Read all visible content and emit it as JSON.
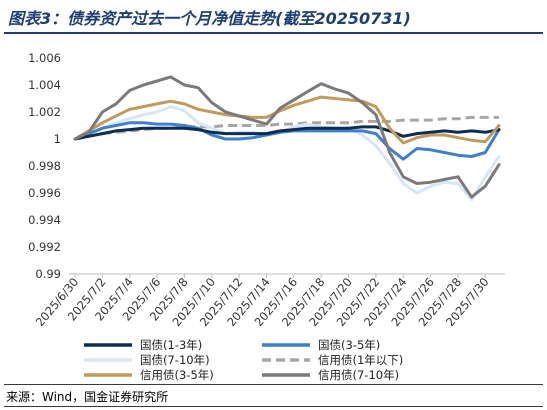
{
  "title": "图表3：债券资产过去一个月净值走势(截至20250731)",
  "source": "来源：Wind，国金证券研究所",
  "chart_data": {
    "type": "line",
    "title": "图表3：债券资产过去一个月净值走势(截至20250731)",
    "ylim": [
      0.99,
      1.006
    ],
    "yticks": [
      0.99,
      0.992,
      0.994,
      0.996,
      0.998,
      1,
      1.002,
      1.004,
      1.006
    ],
    "ytick_labels": [
      "0.99",
      "0.992",
      "0.994",
      "0.996",
      "0.998",
      "1",
      "1.002",
      "1.004",
      "1.006"
    ],
    "x_labels": [
      "2025/6/30",
      "2025/7/2",
      "2025/7/4",
      "2025/7/6",
      "2025/7/8",
      "2025/7/10",
      "2025/7/12",
      "2025/7/14",
      "2025/7/16",
      "2025/7/18",
      "2025/7/20",
      "2025/7/22",
      "2025/7/24",
      "2025/7/26",
      "2025/7/28",
      "2025/7/30"
    ],
    "x": [
      "2025/6/30",
      "2025/7/1",
      "2025/7/2",
      "2025/7/3",
      "2025/7/4",
      "2025/7/5",
      "2025/7/6",
      "2025/7/7",
      "2025/7/8",
      "2025/7/9",
      "2025/7/10",
      "2025/7/11",
      "2025/7/12",
      "2025/7/13",
      "2025/7/14",
      "2025/7/15",
      "2025/7/16",
      "2025/7/17",
      "2025/7/18",
      "2025/7/19",
      "2025/7/20",
      "2025/7/21",
      "2025/7/22",
      "2025/7/23",
      "2025/7/24",
      "2025/7/25",
      "2025/7/26",
      "2025/7/27",
      "2025/7/28",
      "2025/7/29",
      "2025/7/30",
      "2025/7/31"
    ],
    "grid": false,
    "legend_position": "bottom",
    "series": [
      {
        "name": "国债(1-3年)",
        "color": "#0d2d52",
        "dash": "solid",
        "width": 3,
        "values": [
          1.0,
          1.0002,
          1.0004,
          1.0006,
          1.0007,
          1.0008,
          1.0008,
          1.0008,
          1.0008,
          1.0007,
          1.0005,
          1.0004,
          1.0004,
          1.0004,
          1.0004,
          1.0006,
          1.0007,
          1.0008,
          1.0008,
          1.0008,
          1.0008,
          1.0009,
          1.0009,
          1.0006,
          1.0002,
          1.0004,
          1.0005,
          1.0006,
          1.0005,
          1.0006,
          1.0005,
          1.0007
        ]
      },
      {
        "name": "国债(3-5年)",
        "color": "#3f7fce",
        "dash": "solid",
        "width": 3,
        "values": [
          1.0,
          1.0004,
          1.0008,
          1.001,
          1.0012,
          1.0012,
          1.0011,
          1.0011,
          1.001,
          1.0008,
          1.0003,
          1.0,
          1.0,
          1.0001,
          1.0003,
          1.0005,
          1.0006,
          1.0006,
          1.0006,
          1.0006,
          1.0006,
          1.0006,
          1.0004,
          0.9993,
          0.9985,
          0.9993,
          0.9992,
          0.999,
          0.9988,
          0.9987,
          0.999,
          1.0007
        ]
      },
      {
        "name": "国债(7-10年)",
        "color": "#d7e6f4",
        "dash": "solid",
        "width": 3,
        "values": [
          1.0,
          1.0003,
          1.0008,
          1.0012,
          1.0015,
          1.0018,
          1.002,
          1.0024,
          1.0021,
          1.0012,
          1.0008,
          1.0004,
          1.0005,
          1.0005,
          1.0003,
          1.0005,
          1.0009,
          1.0011,
          1.0009,
          1.0008,
          1.0008,
          1.0003,
          0.9995,
          0.9982,
          0.9967,
          0.996,
          0.9965,
          0.9968,
          0.9967,
          0.9955,
          0.9972,
          0.9987
        ]
      },
      {
        "name": "信用债(1年以下)",
        "color": "#a6a6a6",
        "dash": "dashed",
        "width": 3,
        "values": [
          1.0,
          1.0002,
          1.0004,
          1.0005,
          1.0006,
          1.0007,
          1.0008,
          1.0008,
          1.0009,
          1.0009,
          1.0009,
          1.001,
          1.001,
          1.001,
          1.001,
          1.0011,
          1.0011,
          1.0012,
          1.0012,
          1.0012,
          1.0012,
          1.0013,
          1.0013,
          1.0013,
          1.0014,
          1.0014,
          1.0014,
          1.0015,
          1.0015,
          1.0016,
          1.0016,
          1.0016
        ]
      },
      {
        "name": "信用债(3-5年)",
        "color": "#bf9b5c",
        "dash": "solid",
        "width": 3,
        "values": [
          1.0,
          1.0006,
          1.0012,
          1.0017,
          1.0022,
          1.0024,
          1.0026,
          1.0028,
          1.0026,
          1.0022,
          1.002,
          1.0018,
          1.0017,
          1.0016,
          1.0016,
          1.0021,
          1.0025,
          1.0028,
          1.0031,
          1.003,
          1.0029,
          1.0028,
          1.0024,
          1.0008,
          0.9997,
          1.0001,
          1.0003,
          1.0003,
          1.0001,
          0.9999,
          0.9998,
          1.001
        ]
      },
      {
        "name": "信用债(7-10年)",
        "color": "#7a7a7a",
        "dash": "solid",
        "width": 3,
        "values": [
          1.0,
          1.0005,
          1.002,
          1.0026,
          1.0036,
          1.004,
          1.0043,
          1.0046,
          1.004,
          1.0038,
          1.0027,
          1.002,
          1.0017,
          1.0014,
          1.0011,
          1.0023,
          1.0029,
          1.0035,
          1.0041,
          1.0037,
          1.0034,
          1.0027,
          1.0018,
          0.999,
          0.9972,
          0.9967,
          0.9968,
          0.997,
          0.9972,
          0.9957,
          0.9965,
          0.9981
        ]
      }
    ]
  }
}
